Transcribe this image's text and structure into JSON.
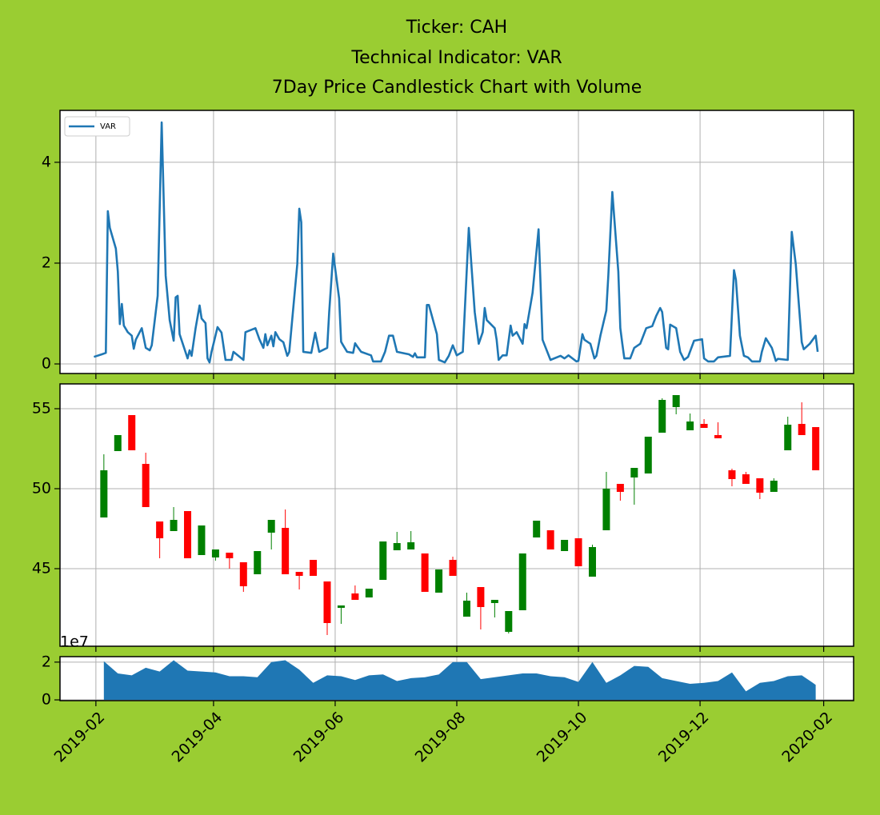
{
  "title": [
    "Ticker: CAH",
    "Technical Indicator: VAR",
    "7Day Price Candlestick Chart with Volume"
  ],
  "chart_data": [
    {
      "type": "line",
      "x": [
        "2019-01-31",
        "2019-02-04",
        "2019-02-06",
        "2019-02-07",
        "2019-02-08",
        "2019-02-11",
        "2019-02-12",
        "2019-02-13",
        "2019-02-14",
        "2019-02-15",
        "2019-02-17",
        "2019-02-19",
        "2019-02-20",
        "2019-02-21",
        "2019-02-24",
        "2019-02-26",
        "2019-02-28",
        "2019-03-01",
        "2019-03-04",
        "2019-03-06",
        "2019-03-08",
        "2019-03-10",
        "2019-03-12",
        "2019-03-13",
        "2019-03-14",
        "2019-03-15",
        "2019-03-19",
        "2019-03-20",
        "2019-03-21",
        "2019-03-23",
        "2019-03-25",
        "2019-03-26",
        "2019-03-28",
        "2019-03-29",
        "2019-03-30",
        "2019-03-31",
        "2019-04-01",
        "2019-04-03",
        "2019-04-05",
        "2019-04-07",
        "2019-04-10",
        "2019-04-11",
        "2019-04-16",
        "2019-04-17",
        "2019-04-22",
        "2019-04-24",
        "2019-04-26",
        "2019-04-27",
        "2019-04-28",
        "2019-04-30",
        "2019-05-01",
        "2019-05-02",
        "2019-05-04",
        "2019-05-06",
        "2019-05-08",
        "2019-05-09",
        "2019-05-13",
        "2019-05-14",
        "2019-05-15",
        "2019-05-16",
        "2019-05-20",
        "2019-05-22",
        "2019-05-24",
        "2019-05-28",
        "2019-05-29",
        "2019-05-31",
        "2019-06-03",
        "2019-06-04",
        "2019-06-05",
        "2019-06-07",
        "2019-06-10",
        "2019-06-11",
        "2019-06-12",
        "2019-06-14",
        "2019-06-19",
        "2019-06-20",
        "2019-06-24",
        "2019-06-26",
        "2019-06-28",
        "2019-06-30",
        "2019-07-02",
        "2019-07-08",
        "2019-07-10",
        "2019-07-11",
        "2019-07-12",
        "2019-07-16",
        "2019-07-17",
        "2019-07-18",
        "2019-07-22",
        "2019-07-23",
        "2019-07-26",
        "2019-07-28",
        "2019-07-30",
        "2019-08-01",
        "2019-08-04",
        "2019-08-07",
        "2019-08-10",
        "2019-08-12",
        "2019-08-14",
        "2019-08-15",
        "2019-08-16",
        "2019-08-20",
        "2019-08-21",
        "2019-08-22",
        "2019-08-24",
        "2019-08-26",
        "2019-08-28",
        "2019-08-29",
        "2019-08-31",
        "2019-09-03",
        "2019-09-04",
        "2019-09-05",
        "2019-09-08",
        "2019-09-11",
        "2019-09-13",
        "2019-09-17",
        "2019-09-22",
        "2019-09-24",
        "2019-09-26",
        "2019-09-30",
        "2019-10-01",
        "2019-10-03",
        "2019-10-04",
        "2019-10-07",
        "2019-10-09",
        "2019-10-10",
        "2019-10-12",
        "2019-10-15",
        "2019-10-16",
        "2019-10-18",
        "2019-10-21",
        "2019-10-22",
        "2019-10-23",
        "2019-10-24",
        "2019-10-27",
        "2019-10-29",
        "2019-11-01",
        "2019-11-04",
        "2019-11-07",
        "2019-11-09",
        "2019-11-11",
        "2019-11-12",
        "2019-11-14",
        "2019-11-15",
        "2019-11-16",
        "2019-11-19",
        "2019-11-21",
        "2019-11-23",
        "2019-11-25",
        "2019-11-28",
        "2019-12-02",
        "2019-12-03",
        "2019-12-05",
        "2019-12-08",
        "2019-12-10",
        "2019-12-16",
        "2019-12-18",
        "2019-12-19",
        "2019-12-21",
        "2019-12-23",
        "2019-12-25",
        "2019-12-27",
        "2019-12-31",
        "2020-01-01",
        "2020-01-03",
        "2020-01-06",
        "2020-01-08",
        "2020-01-09",
        "2020-01-14",
        "2020-01-16",
        "2020-01-18",
        "2020-01-21",
        "2020-01-22",
        "2020-01-25",
        "2020-01-28",
        "2020-01-29"
      ],
      "series": [
        {
          "name": "VAR",
          "color": "#1f77b4",
          "values": [
            0.14,
            0.19,
            0.22,
            3.03,
            2.7,
            2.29,
            1.83,
            0.79,
            1.19,
            0.76,
            0.63,
            0.56,
            0.3,
            0.48,
            0.71,
            0.32,
            0.27,
            0.37,
            1.35,
            4.79,
            1.75,
            0.87,
            0.46,
            1.32,
            1.35,
            0.59,
            0.11,
            0.27,
            0.16,
            0.71,
            1.16,
            0.9,
            0.81,
            0.11,
            0.03,
            0.24,
            0.4,
            0.73,
            0.62,
            0.08,
            0.08,
            0.24,
            0.08,
            0.63,
            0.71,
            0.49,
            0.32,
            0.59,
            0.37,
            0.56,
            0.35,
            0.63,
            0.49,
            0.43,
            0.16,
            0.24,
            1.98,
            3.08,
            2.81,
            0.24,
            0.22,
            0.62,
            0.24,
            0.32,
            1.03,
            2.19,
            1.3,
            0.44,
            0.37,
            0.24,
            0.22,
            0.41,
            0.35,
            0.24,
            0.17,
            0.05,
            0.05,
            0.24,
            0.56,
            0.56,
            0.24,
            0.19,
            0.14,
            0.21,
            0.13,
            0.13,
            1.17,
            1.17,
            0.59,
            0.08,
            0.03,
            0.16,
            0.37,
            0.17,
            0.24,
            2.7,
            1.03,
            0.4,
            0.63,
            1.11,
            0.87,
            0.71,
            0.48,
            0.08,
            0.17,
            0.17,
            0.76,
            0.56,
            0.63,
            0.4,
            0.79,
            0.71,
            1.41,
            2.67,
            0.48,
            0.08,
            0.16,
            0.11,
            0.17,
            0.05,
            0.06,
            0.59,
            0.48,
            0.4,
            0.11,
            0.16,
            0.56,
            1.06,
            1.75,
            3.41,
            1.83,
            0.71,
            0.4,
            0.11,
            0.11,
            0.32,
            0.4,
            0.71,
            0.75,
            0.95,
            1.11,
            1.03,
            0.32,
            0.29,
            0.78,
            0.71,
            0.24,
            0.08,
            0.14,
            0.46,
            0.49,
            0.11,
            0.05,
            0.05,
            0.13,
            0.16,
            1.86,
            1.67,
            0.56,
            0.16,
            0.13,
            0.05,
            0.05,
            0.24,
            0.51,
            0.32,
            0.06,
            0.1,
            0.08,
            2.62,
            1.98,
            0.43,
            0.29,
            0.4,
            0.56,
            0.24
          ]
        }
      ],
      "xlim": [
        "2019-01-14",
        "2020-02-16"
      ],
      "xticks": [
        "2019-02",
        "2019-04",
        "2019-06",
        "2019-08",
        "2019-10",
        "2019-12",
        "2020-02"
      ],
      "ylim": [
        -0.19,
        5.03
      ],
      "yticks": [
        0,
        2,
        4
      ],
      "grid": true,
      "legend": "upper left"
    },
    {
      "type": "candlestick",
      "x": [
        "2019-02-05",
        "2019-02-12",
        "2019-02-19",
        "2019-02-26",
        "2019-03-05",
        "2019-03-12",
        "2019-03-19",
        "2019-03-26",
        "2019-04-02",
        "2019-04-09",
        "2019-04-16",
        "2019-04-23",
        "2019-04-30",
        "2019-05-07",
        "2019-05-14",
        "2019-05-21",
        "2019-05-28",
        "2019-06-04",
        "2019-06-11",
        "2019-06-18",
        "2019-06-25",
        "2019-07-02",
        "2019-07-09",
        "2019-07-16",
        "2019-07-23",
        "2019-07-30",
        "2019-08-06",
        "2019-08-13",
        "2019-08-20",
        "2019-08-27",
        "2019-09-03",
        "2019-09-10",
        "2019-09-17",
        "2019-09-24",
        "2019-10-01",
        "2019-10-08",
        "2019-10-15",
        "2019-10-22",
        "2019-10-29",
        "2019-11-05",
        "2019-11-12",
        "2019-11-19",
        "2019-11-26",
        "2019-12-03",
        "2019-12-10",
        "2019-12-17",
        "2019-12-24",
        "2019-12-31",
        "2020-01-07",
        "2020-01-14",
        "2020-01-21",
        "2020-01-28"
      ],
      "open": [
        48.2,
        52.35,
        54.6,
        51.55,
        47.95,
        47.35,
        48.6,
        45.85,
        45.7,
        46.0,
        45.4,
        44.65,
        47.25,
        47.55,
        44.8,
        45.55,
        44.2,
        42.55,
        43.45,
        43.2,
        44.3,
        46.15,
        46.2,
        45.95,
        43.5,
        45.55,
        42.0,
        43.85,
        42.85,
        41.05,
        42.4,
        46.95,
        47.4,
        46.1,
        46.9,
        44.5,
        47.4,
        50.3,
        50.7,
        50.95,
        53.5,
        55.1,
        53.65,
        54.05,
        53.35,
        51.15,
        50.9,
        50.65,
        49.8,
        52.4,
        54.05,
        53.85
      ],
      "high": [
        52.15,
        53.35,
        54.6,
        52.25,
        47.95,
        48.85,
        48.6,
        47.7,
        46.2,
        46.0,
        45.4,
        46.1,
        48.05,
        48.7,
        44.8,
        45.55,
        44.2,
        42.7,
        43.95,
        43.75,
        46.7,
        47.3,
        47.35,
        45.95,
        44.95,
        45.75,
        43.5,
        43.85,
        43.05,
        42.35,
        45.95,
        48.0,
        47.4,
        46.8,
        46.9,
        46.5,
        51.05,
        50.3,
        51.3,
        53.25,
        55.65,
        55.85,
        54.7,
        54.35,
        54.15,
        51.25,
        51.05,
        50.65,
        50.65,
        54.5,
        55.4,
        53.85
      ],
      "low": [
        48.2,
        52.35,
        52.4,
        48.85,
        45.65,
        47.35,
        45.65,
        45.85,
        45.5,
        45.0,
        43.55,
        44.65,
        46.2,
        44.65,
        43.7,
        44.55,
        40.85,
        41.55,
        43.05,
        43.2,
        44.3,
        46.15,
        46.2,
        43.55,
        43.5,
        44.55,
        42.0,
        41.2,
        41.95,
        40.95,
        42.4,
        46.95,
        46.2,
        46.1,
        45.15,
        44.5,
        47.4,
        49.25,
        49.0,
        50.95,
        53.5,
        54.65,
        53.65,
        53.8,
        53.15,
        50.15,
        50.3,
        49.35,
        49.8,
        52.4,
        53.35,
        51.15
      ],
      "close": [
        51.15,
        53.35,
        52.4,
        48.85,
        46.9,
        48.05,
        45.65,
        47.7,
        46.2,
        45.65,
        43.9,
        46.1,
        48.05,
        44.65,
        44.55,
        44.55,
        41.6,
        42.7,
        43.05,
        43.75,
        46.7,
        46.6,
        46.65,
        43.55,
        44.95,
        44.55,
        43.0,
        42.6,
        43.05,
        42.35,
        45.95,
        48.0,
        46.2,
        46.8,
        45.15,
        46.35,
        50.0,
        49.8,
        51.3,
        53.25,
        55.55,
        55.85,
        54.2,
        53.8,
        53.15,
        50.6,
        50.3,
        49.75,
        50.5,
        54.0,
        53.35,
        51.15
      ],
      "up_color": "#008000",
      "down_color": "#ff0000",
      "xlim": [
        "2019-01-14",
        "2020-02-16"
      ],
      "xticks": [
        "2019-02",
        "2019-04",
        "2019-06",
        "2019-08",
        "2019-10",
        "2019-12",
        "2020-02"
      ],
      "ylim": [
        40.15,
        56.55
      ],
      "yticks": [
        45,
        50,
        55
      ],
      "grid": true
    },
    {
      "type": "area",
      "x": [
        "2019-02-05",
        "2019-02-12",
        "2019-02-19",
        "2019-02-26",
        "2019-03-05",
        "2019-03-12",
        "2019-03-19",
        "2019-03-26",
        "2019-04-02",
        "2019-04-09",
        "2019-04-16",
        "2019-04-23",
        "2019-04-30",
        "2019-05-07",
        "2019-05-14",
        "2019-05-21",
        "2019-05-28",
        "2019-06-04",
        "2019-06-11",
        "2019-06-18",
        "2019-06-25",
        "2019-07-02",
        "2019-07-09",
        "2019-07-16",
        "2019-07-23",
        "2019-07-30",
        "2019-08-06",
        "2019-08-13",
        "2019-08-20",
        "2019-08-27",
        "2019-09-03",
        "2019-09-10",
        "2019-09-17",
        "2019-09-24",
        "2019-10-01",
        "2019-10-08",
        "2019-10-15",
        "2019-10-22",
        "2019-10-29",
        "2019-11-05",
        "2019-11-12",
        "2019-11-19",
        "2019-11-26",
        "2019-12-03",
        "2019-12-10",
        "2019-12-17",
        "2019-12-24",
        "2019-12-31",
        "2020-01-07",
        "2020-01-14",
        "2020-01-21",
        "2020-01-28"
      ],
      "values": [
        20500000,
        14000000,
        13000000,
        17000000,
        15000000,
        21000000,
        15500000,
        15000000,
        14500000,
        12500000,
        12500000,
        12000000,
        20000000,
        21000000,
        16000000,
        9000000,
        13000000,
        12500000,
        10500000,
        13000000,
        13500000,
        10000000,
        11500000,
        12000000,
        13500000,
        20000000,
        20000000,
        11000000,
        12000000,
        13000000,
        14000000,
        14000000,
        12500000,
        12000000,
        9500000,
        20000000,
        9000000,
        13000000,
        18000000,
        17500000,
        11500000,
        10000000,
        8500000,
        9000000,
        10000000,
        14500000,
        4500000,
        9000000,
        10000000,
        12500000,
        13000000,
        8000000
      ],
      "color": "#1f77b4",
      "offset_label": "1e7",
      "xlim": [
        "2019-01-14",
        "2020-02-16"
      ],
      "xticks": [
        "2019-02",
        "2019-04",
        "2019-06",
        "2019-08",
        "2019-10",
        "2019-12",
        "2020-02"
      ],
      "ylim": [
        -400000,
        22900000
      ],
      "yticks": [
        0,
        {
          "value": 20000000,
          "label": "2"
        }
      ],
      "grid": true
    }
  ]
}
